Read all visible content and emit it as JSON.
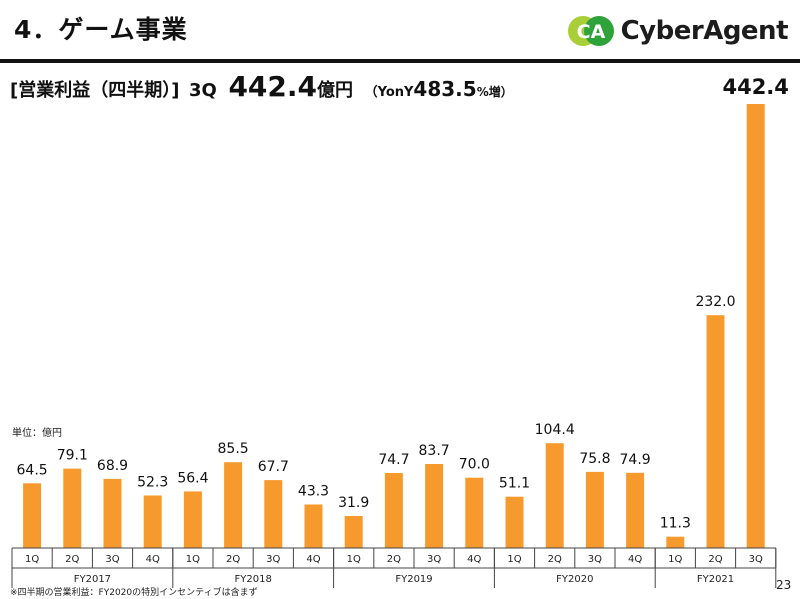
{
  "header": {
    "title": "4．ゲーム事業",
    "brand_name": "CyberAgent",
    "logo_mark": "CA"
  },
  "headline": {
    "label": "[営業利益（四半期）]",
    "quarter": "3Q",
    "value": "442.4",
    "unit": "億円",
    "yoy_open": "（YonY",
    "yoy_value": "483.5",
    "yoy_close": "%増）"
  },
  "unit_note": "単位：億円",
  "footnote": "※四半期の営業利益：FY2020の特別インセンティブは含まず",
  "page_number": "23",
  "colors": {
    "bar": "#f79a2e",
    "logo_green": "#2fa33a",
    "logo_lime": "#a8cf38"
  },
  "chart_data": {
    "type": "bar",
    "title": "営業利益（四半期）",
    "ylabel": "億円",
    "ylim": [
      0,
      442.4
    ],
    "groups": [
      {
        "name": "FY2017",
        "categories": [
          "1Q",
          "2Q",
          "3Q",
          "4Q"
        ],
        "values": [
          64.5,
          79.1,
          68.9,
          52.3
        ],
        "labels": [
          "64.5",
          "79.1",
          "68.9",
          "52.3"
        ]
      },
      {
        "name": "FY2018",
        "categories": [
          "1Q",
          "2Q",
          "3Q",
          "4Q"
        ],
        "values": [
          56.4,
          85.5,
          67.7,
          43.3
        ],
        "labels": [
          "56.4",
          "85.5",
          "67.7",
          "43.3"
        ]
      },
      {
        "name": "FY2019",
        "categories": [
          "1Q",
          "2Q",
          "3Q",
          "4Q"
        ],
        "values": [
          31.9,
          74.7,
          83.7,
          70.0
        ],
        "labels": [
          "31.9",
          "74.7",
          "83.7",
          "70.0"
        ]
      },
      {
        "name": "FY2020",
        "categories": [
          "1Q",
          "2Q",
          "3Q",
          "4Q"
        ],
        "values": [
          51.1,
          104.4,
          75.8,
          74.9
        ],
        "labels": [
          "51.1",
          "104.4",
          "75.8",
          "74.9"
        ]
      },
      {
        "name": "FY2021",
        "categories": [
          "1Q",
          "2Q",
          "3Q"
        ],
        "values": [
          11.3,
          232.0,
          442.4
        ],
        "labels": [
          "11.3",
          "232.0",
          "442.4"
        ],
        "emphasized_index": 2
      }
    ]
  }
}
